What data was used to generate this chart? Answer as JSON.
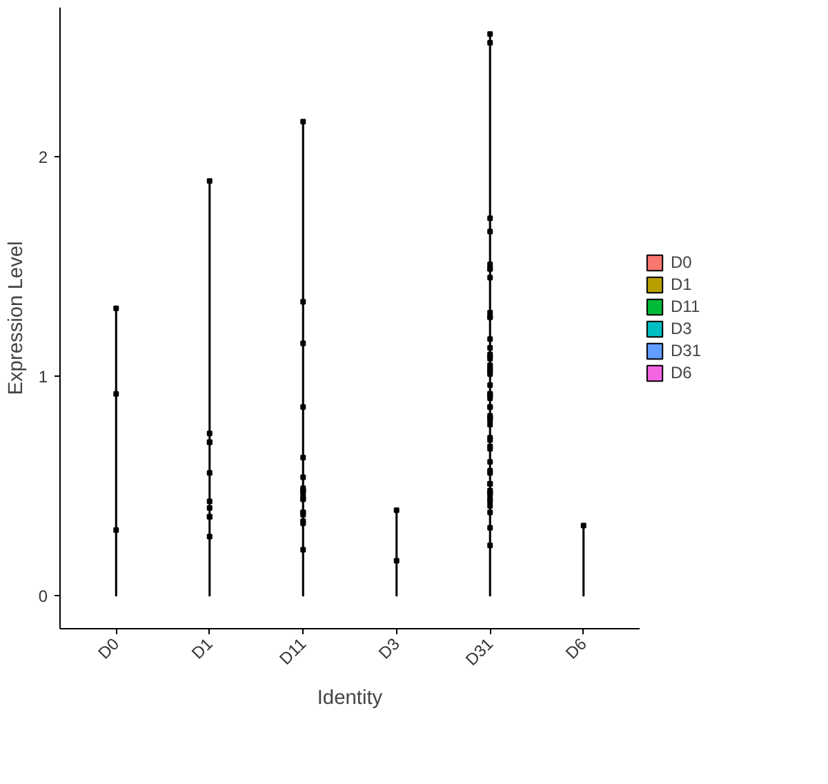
{
  "chart_data": {
    "type": "bar",
    "xlabel": "Identity",
    "ylabel": "Expression Level",
    "categories": [
      "D0",
      "D1",
      "D11",
      "D3",
      "D31",
      "D6"
    ],
    "ylim": [
      -0.15,
      2.68
    ],
    "yticks": [
      0,
      1,
      2
    ],
    "grid": false,
    "legend": "right",
    "marker": "square",
    "series": [
      {
        "name": "D0",
        "color": "#f8766d",
        "x": [
          "D0"
        ],
        "values": [
          1.31
        ]
      },
      {
        "name": "D1",
        "color": "#b79f00",
        "x": [
          "D1"
        ],
        "values": [
          1.89
        ]
      },
      {
        "name": "D11",
        "color": "#00ba38",
        "x": [
          "D11"
        ],
        "values": [
          2.16
        ]
      },
      {
        "name": "D3",
        "color": "#00bfc4",
        "x": [
          "D3"
        ],
        "values": [
          0.39
        ]
      },
      {
        "name": "D31",
        "color": "#619cff",
        "x": [
          "D31"
        ],
        "values": [
          2.56
        ]
      },
      {
        "name": "D6",
        "color": "#f564e3",
        "x": [
          "D6"
        ],
        "values": [
          0.32
        ]
      },
      {
        "type": "scatter",
        "color": "#000000",
        "x": [
          "D11",
          "D1",
          "D0",
          "D11",
          "D11",
          "D0",
          "D11",
          "D1",
          "D1",
          "D1",
          "D11",
          "D1",
          "D11",
          "D11",
          "D11",
          "D11",
          "D11",
          "D11",
          "D11",
          "D11",
          "D1",
          "D1",
          "D11",
          "D11",
          "D11",
          "D1",
          "D1",
          "D11",
          "D11",
          "D0",
          "D1",
          "D11",
          "D31",
          "D31",
          "D31",
          "D31",
          "D31",
          "D31",
          "D31",
          "D31",
          "D31",
          "D31",
          "D31",
          "D31",
          "D31",
          "D31",
          "D31",
          "D31",
          "D31",
          "D31",
          "D31",
          "D31",
          "D31",
          "D31",
          "D31",
          "D31",
          "D31",
          "D31",
          "D31",
          "D31",
          "D31",
          "D31",
          "D31",
          "D31",
          "D31",
          "D31",
          "D31",
          "D31",
          "D31",
          "D31",
          "D31",
          "D31",
          "D31",
          "D31",
          "D31",
          "D31",
          "D31",
          "D31",
          "D31",
          "D31",
          "D31",
          "D31",
          "D31",
          "D31",
          "D3",
          "D3",
          "D6"
        ],
        "values": [
          2.16,
          1.89,
          1.31,
          1.34,
          1.15,
          0.92,
          0.86,
          0.74,
          0.7,
          0.7,
          0.63,
          0.56,
          0.54,
          0.48,
          0.49,
          0.48,
          0.47,
          0.45,
          0.44,
          0.44,
          0.43,
          0.4,
          0.38,
          0.38,
          0.37,
          0.36,
          0.36,
          0.34,
          0.33,
          0.3,
          0.27,
          0.21,
          2.56,
          2.52,
          1.72,
          1.66,
          1.51,
          1.49,
          1.49,
          1.45,
          1.29,
          1.27,
          1.27,
          1.17,
          1.13,
          1.1,
          1.09,
          1.08,
          1.05,
          1.04,
          1.03,
          1.01,
          1.02,
          0.96,
          0.92,
          0.92,
          0.9,
          0.91,
          0.86,
          0.86,
          0.81,
          0.81,
          0.82,
          0.8,
          0.78,
          0.72,
          0.71,
          0.68,
          0.67,
          0.61,
          0.56,
          0.57,
          0.51,
          0.51,
          0.48,
          0.47,
          0.47,
          0.46,
          0.44,
          0.43,
          0.41,
          0.38,
          0.31,
          0.23,
          0.39,
          0.16,
          0.32
        ]
      }
    ]
  }
}
